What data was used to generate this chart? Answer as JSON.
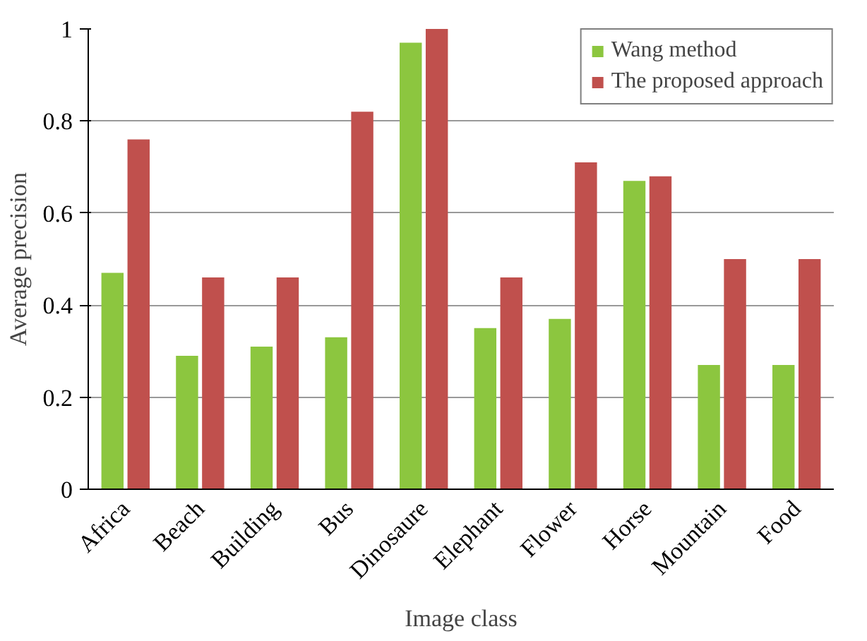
{
  "chart_data": {
    "type": "bar",
    "xlabel": "Image class",
    "ylabel": "Average precision",
    "categories": [
      "Africa",
      "Beach",
      "Building",
      "Bus",
      "Dinosaure",
      "Elephant",
      "Flower",
      "Horse",
      "Mountain",
      "Food"
    ],
    "series": [
      {
        "name": "Wang method",
        "color": "#8cc63f",
        "values": [
          0.47,
          0.29,
          0.31,
          0.33,
          0.97,
          0.35,
          0.37,
          0.67,
          0.27,
          0.27
        ]
      },
      {
        "name": "The proposed approach",
        "color": "#c0504d",
        "values": [
          0.76,
          0.46,
          0.46,
          0.82,
          1.0,
          0.46,
          0.71,
          0.68,
          0.5,
          0.5
        ]
      }
    ],
    "ylim": [
      0,
      1
    ],
    "yticks": [
      0,
      0.2,
      0.4,
      0.6,
      0.8,
      1
    ],
    "grid": "y",
    "legend": "top right"
  }
}
